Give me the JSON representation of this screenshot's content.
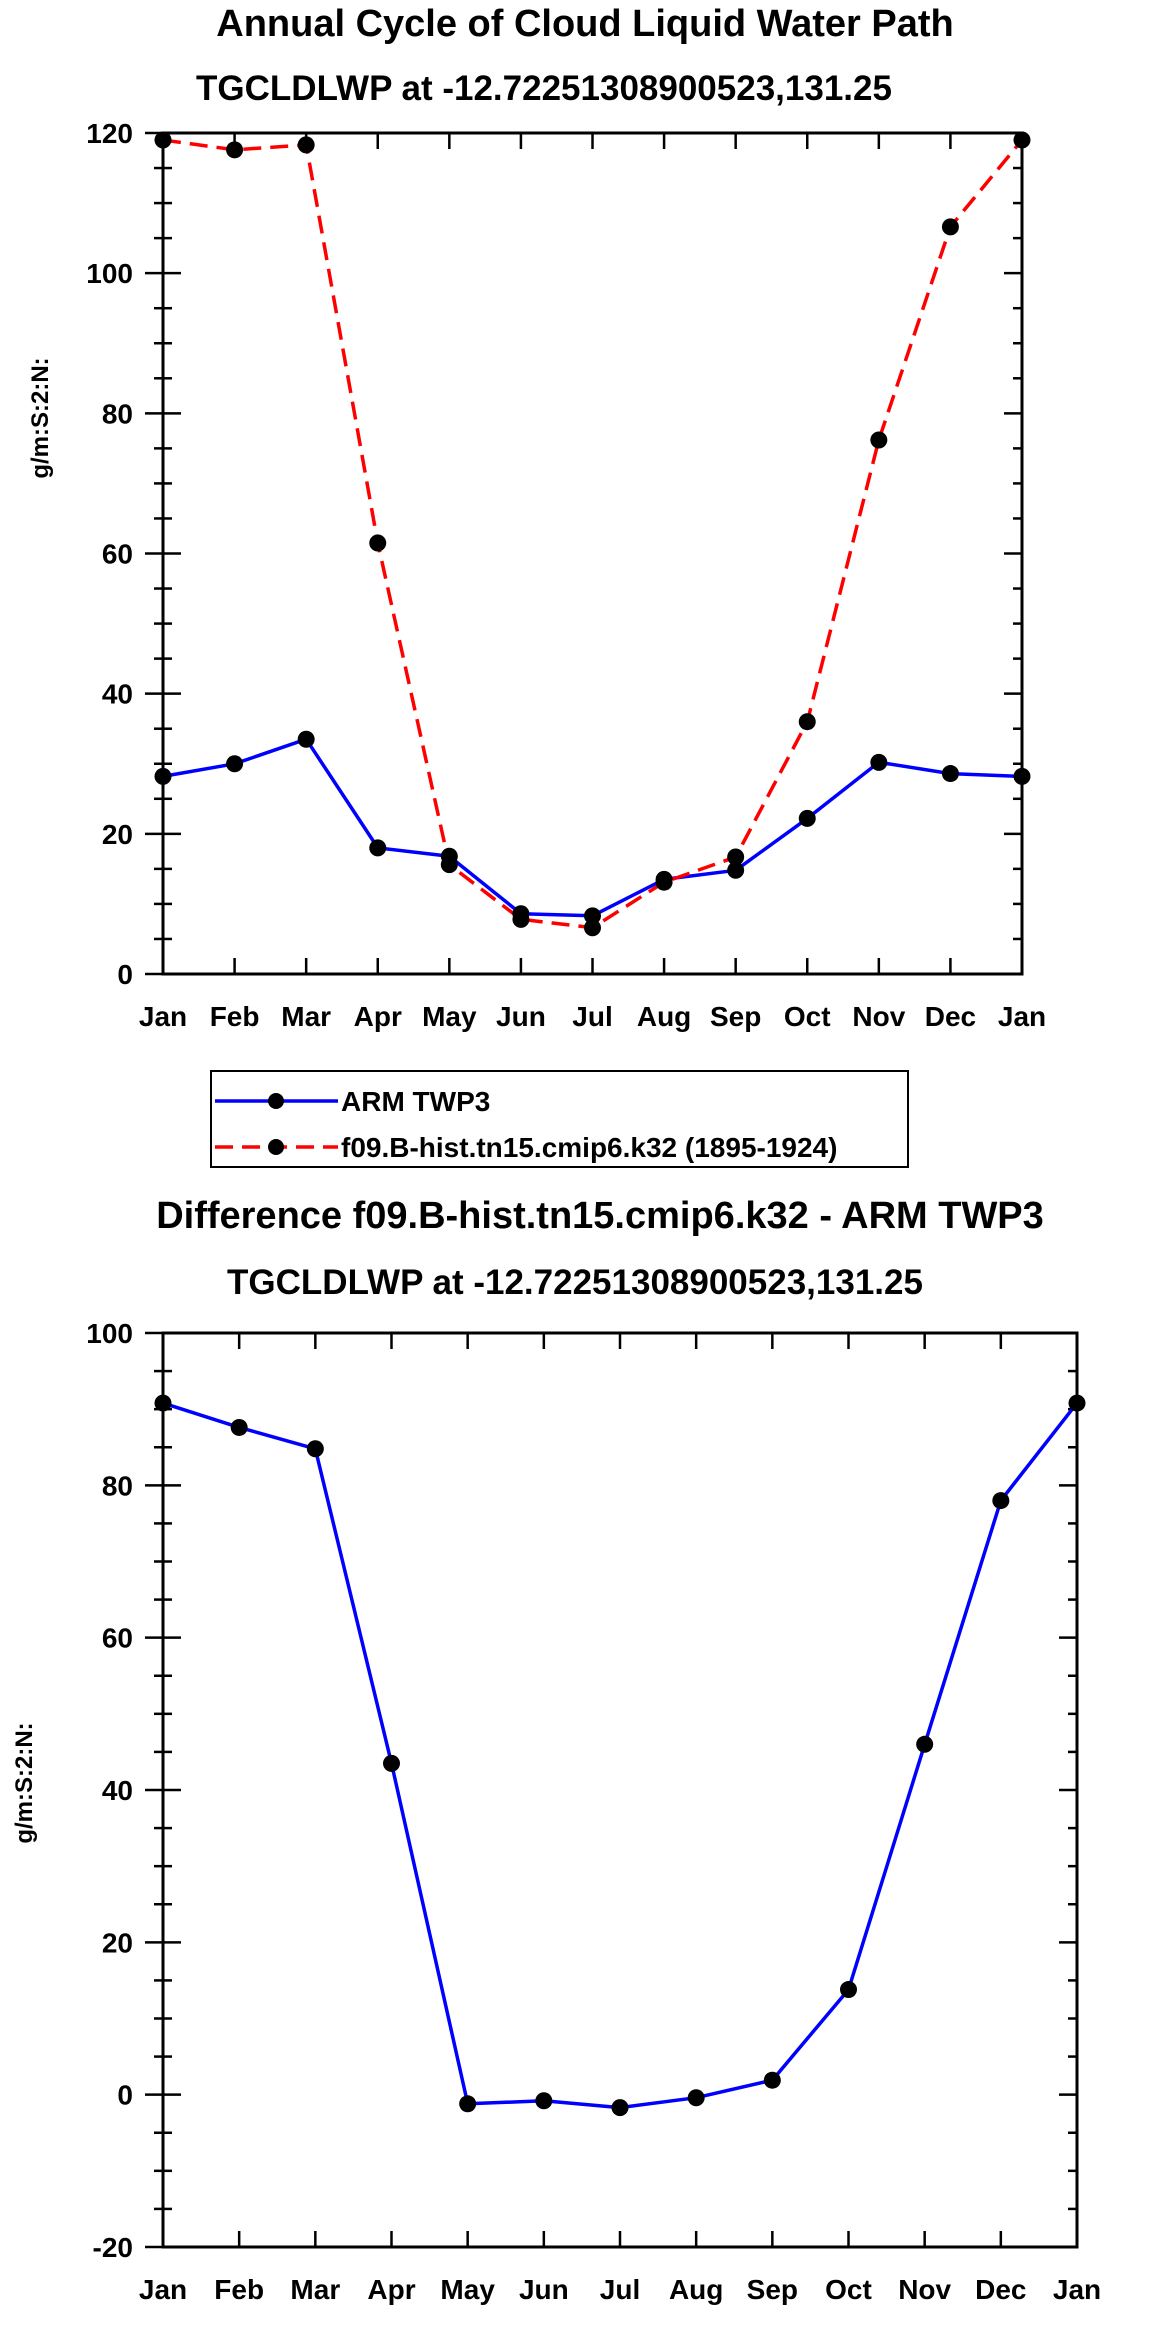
{
  "chart_data": [
    {
      "type": "line",
      "title": "Annual Cycle of Cloud Liquid Water Path",
      "subtitle": "TGCLDLWP at -12.72251308900523,131.25",
      "xlabel": "",
      "ylabel": "g/m:S:2:N:",
      "categories": [
        "Jan",
        "Feb",
        "Mar",
        "Apr",
        "May",
        "Jun",
        "Jul",
        "Aug",
        "Sep",
        "Oct",
        "Nov",
        "Dec",
        "Jan"
      ],
      "ylim": [
        0,
        120
      ],
      "yticks": [
        0,
        20,
        40,
        60,
        80,
        100,
        120
      ],
      "series": [
        {
          "name": "ARM TWP3",
          "color": "#0000ff",
          "dash": "solid",
          "values": [
            28.2,
            30.0,
            33.5,
            18.0,
            16.8,
            8.6,
            8.3,
            13.5,
            14.8,
            22.2,
            30.2,
            28.6,
            28.2
          ]
        },
        {
          "name": "f09.B-hist.tn15.cmip6.k32 (1895-1924)",
          "color": "#ff0000",
          "dash": "dashed",
          "values": [
            119.0,
            117.6,
            118.3,
            61.5,
            15.6,
            7.8,
            6.6,
            13.1,
            16.7,
            36.0,
            76.2,
            106.6,
            119.0
          ]
        }
      ],
      "legend": {
        "entries": [
          "ARM TWP3",
          "f09.B-hist.tn15.cmip6.k32 (1895-1924)"
        ],
        "placement": "below"
      }
    },
    {
      "type": "line",
      "title": "Difference f09.B-hist.tn15.cmip6.k32 - ARM TWP3",
      "subtitle": "TGCLDLWP at -12.72251308900523,131.25",
      "xlabel": "",
      "ylabel": "g/m:S:2:N:",
      "categories": [
        "Jan",
        "Feb",
        "Mar",
        "Apr",
        "May",
        "Jun",
        "Jul",
        "Aug",
        "Sep",
        "Oct",
        "Nov",
        "Dec",
        "Jan"
      ],
      "ylim": [
        -20,
        100
      ],
      "yticks": [
        -20,
        0,
        20,
        40,
        60,
        80,
        100
      ],
      "series": [
        {
          "name": "Difference",
          "color": "#0000ff",
          "dash": "solid",
          "values": [
            90.8,
            87.6,
            84.8,
            43.5,
            -1.2,
            -0.8,
            -1.7,
            -0.4,
            1.9,
            13.8,
            46.0,
            78.0,
            90.8
          ]
        }
      ]
    }
  ]
}
